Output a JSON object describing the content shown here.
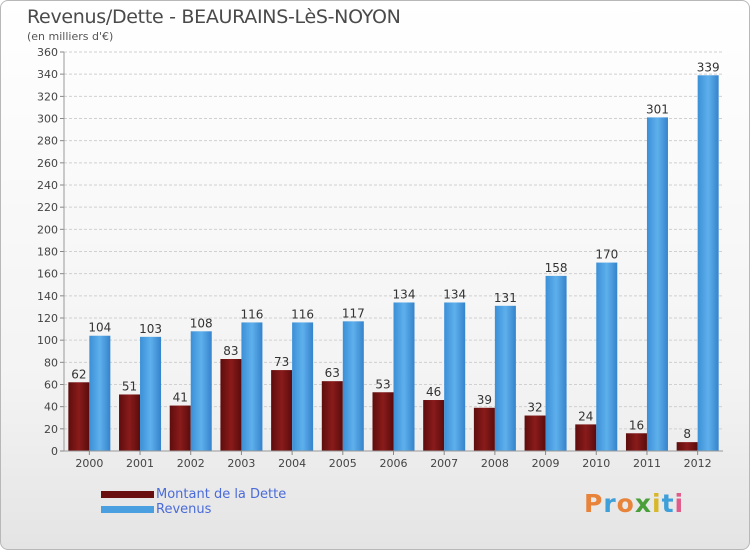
{
  "header": {
    "title": "Revenus/Dette - BEAURAINS-LèS-NOYON",
    "subtitle": "(en milliers d'€)"
  },
  "colors": {
    "dette": "#7a1414",
    "revenus": "#4a9fe0",
    "legend_text": "#4a6bd8"
  },
  "chart_data": {
    "type": "bar",
    "title": "Revenus/Dette - BEAURAINS-LèS-NOYON",
    "ylabel": "(en milliers d'€)",
    "categories": [
      "2000",
      "2001",
      "2002",
      "2003",
      "2004",
      "2005",
      "2006",
      "2007",
      "2008",
      "2009",
      "2010",
      "2011",
      "2012"
    ],
    "series": [
      {
        "name": "Montant de la Dette",
        "values": [
          62,
          51,
          41,
          83,
          73,
          63,
          53,
          46,
          39,
          32,
          24,
          16,
          8
        ]
      },
      {
        "name": "Revenus",
        "values": [
          104,
          103,
          108,
          116,
          116,
          117,
          134,
          134,
          131,
          158,
          170,
          301,
          339
        ]
      }
    ],
    "ylim": [
      0,
      360
    ],
    "yticks": [
      0,
      20,
      40,
      60,
      80,
      100,
      120,
      140,
      160,
      180,
      200,
      220,
      240,
      260,
      280,
      300,
      320,
      340,
      360
    ],
    "grid": true,
    "legend_position": "bottom-left"
  },
  "legend": {
    "items": [
      {
        "label": "Montant de la Dette"
      },
      {
        "label": "Revenus"
      }
    ]
  },
  "logo": {
    "letters": [
      "P",
      "r",
      "o",
      "x",
      "i",
      "t",
      "i"
    ],
    "colors": [
      "#e8833a",
      "#3f9fd8",
      "#e8833a",
      "#4a9f3a",
      "#d8b82a",
      "#3f9fd8",
      "#e05a8a"
    ]
  }
}
